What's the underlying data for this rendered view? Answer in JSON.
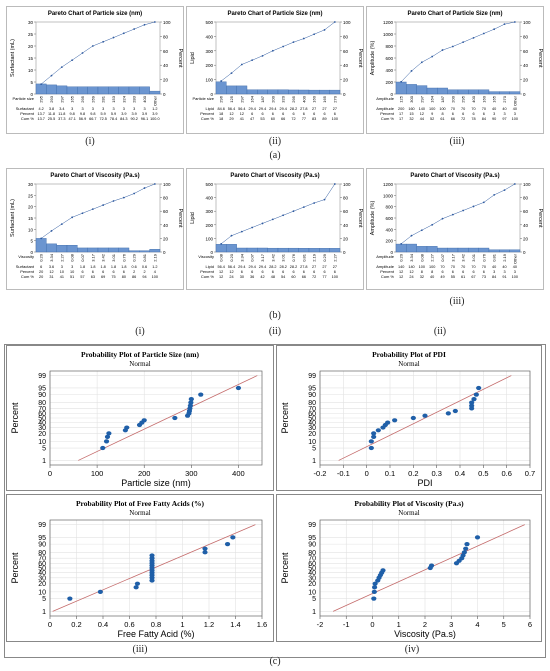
{
  "labels": {
    "row_a": "(a)",
    "row_b": "(b)",
    "row_c": "(c)",
    "a_i": "(i)",
    "a_ii": "(ii)",
    "a_iii": "(iii)",
    "b_i": "(i)",
    "b_ii": "(ii)",
    "b_iii": "(iii)",
    "b_extra": "(ii)",
    "c_i": "(i)",
    "c_ii": "(ii)",
    "c_iii": "(iii)",
    "c_iv": "(iv)"
  },
  "colors": {
    "bar": "#6b95d0",
    "bar_edge": "#3d6aa8",
    "line": "#2e5aa0",
    "point": "#1f5fa8",
    "fit": "#c46a6a",
    "grid": "#e2e2e2"
  },
  "chart_data": [
    {
      "id": "a_i",
      "type": "bar",
      "title": "Pareto Chart of Particle size (nm)",
      "ylabel": "Surfactant (mL)",
      "y2label": "Percent",
      "ylim": [
        0,
        30
      ],
      "yticks": [
        0,
        5,
        10,
        15,
        20,
        25,
        30
      ],
      "y2ticks": [
        0,
        20,
        40,
        60,
        80,
        100
      ],
      "row_names": [
        "Particle size",
        "Surfactant",
        "Percent",
        "Cum %"
      ],
      "categories": [
        "295",
        "293",
        "297",
        "165",
        "295",
        "269",
        "281",
        "153",
        "324",
        "283",
        "400",
        "Other"
      ],
      "values": [
        4.2,
        3.8,
        3.4,
        3.0,
        3.0,
        3.0,
        3.0,
        3.0,
        3.0,
        3.0,
        3.0,
        1.2
      ],
      "percent": [
        "13.7",
        "11.8",
        "11.8",
        "9.8",
        "9.8",
        "9.8",
        "5.9",
        "5.9",
        "3.9",
        "3.9",
        "3.9",
        "3.9"
      ],
      "cum": [
        "13.7",
        "25.5",
        "37.3",
        "47.1",
        "56.9",
        "66.7",
        "72.5",
        "78.4",
        "84.3",
        "90.2",
        "96.1",
        "100.0"
      ],
      "cum_values": [
        13.7,
        25.5,
        37.3,
        47.1,
        56.9,
        66.7,
        72.5,
        78.4,
        84.3,
        90.2,
        96.1,
        100
      ]
    },
    {
      "id": "a_ii",
      "type": "bar",
      "title": "Pareto Chart of Particle Size (nm)",
      "ylabel": "Lipid",
      "y2label": "Percent",
      "ylim": [
        0,
        500
      ],
      "yticks": [
        0,
        100,
        200,
        300,
        400,
        500
      ],
      "y2ticks": [
        0,
        20,
        40,
        60,
        80,
        100
      ],
      "row_names": [
        "Particle size",
        "Lipid",
        "Percent",
        "Cum %"
      ],
      "categories": [
        "296",
        "125",
        "297",
        "164",
        "187",
        "200",
        "320",
        "295",
        "400",
        "160",
        "165",
        "270"
      ],
      "values": [
        84.6,
        56.4,
        56.4,
        29.4,
        29.4,
        29.4,
        29.4,
        28.2,
        27.8,
        27.0,
        27.0,
        27.0
      ],
      "percent": [
        "18",
        "12",
        "12",
        "6",
        "6",
        "6",
        "6",
        "6",
        "6",
        "6",
        "6",
        "6"
      ],
      "cum": [
        "18",
        "29",
        "41",
        "47",
        "53",
        "60",
        "66",
        "72",
        "77",
        "83",
        "89",
        "100"
      ],
      "cum_values": [
        18,
        29,
        41,
        47,
        53,
        60,
        66,
        72,
        77,
        83,
        89,
        100
      ]
    },
    {
      "id": "a_iii",
      "type": "bar",
      "title": "Pareto Chart of Particle Size (nm)",
      "ylabel": "Amplitude (%)",
      "y2label": "Percent",
      "ylim": [
        0,
        1200
      ],
      "yticks": [
        0,
        200,
        400,
        600,
        800,
        1000,
        1200
      ],
      "y2ticks": [
        0,
        20,
        40,
        60,
        80,
        100
      ],
      "row_names": [
        "Amplitude",
        "Amplitude",
        "Percent",
        "Cum %"
      ],
      "categories": [
        "125",
        "300",
        "297",
        "164",
        "187",
        "200",
        "295",
        "400",
        "160",
        "165",
        "270",
        "Other"
      ],
      "values": [
        200,
        160,
        140,
        100,
        100,
        70,
        70,
        70,
        70,
        40,
        40,
        40
      ],
      "percent": [
        "17",
        "15",
        "12",
        "9",
        "8",
        "6",
        "6",
        "6",
        "6",
        "3",
        "3",
        "3"
      ],
      "cum": [
        "17",
        "32",
        "44",
        "52",
        "61",
        "66",
        "72",
        "78",
        "84",
        "90",
        "97",
        "100"
      ],
      "cum_values": [
        17,
        32,
        44,
        52,
        61,
        66,
        72,
        78,
        84,
        90,
        97,
        100
      ]
    },
    {
      "id": "b_i",
      "type": "bar",
      "title": "Pareto Chart of Viscosity (Pa.s)",
      "ylabel": "Surfactant (mL)",
      "y2label": "Percent",
      "ylim": [
        0,
        30
      ],
      "yticks": [
        0,
        5,
        10,
        15,
        20,
        25,
        30
      ],
      "y2ticks": [
        0,
        20,
        40,
        60,
        80,
        100
      ],
      "row_names": [
        "Viscosity",
        "Surfactant",
        "Percent",
        "Cum %"
      ],
      "categories": [
        "0.20",
        "3.34",
        "2.27",
        "0.08",
        "0.07",
        "3.17",
        "3.42",
        "3.01",
        "0.76",
        "0.29",
        "0.81",
        "2.19"
      ],
      "values": [
        6.0,
        3.6,
        3.0,
        3.0,
        1.8,
        1.8,
        1.8,
        1.8,
        1.8,
        0.6,
        0.6,
        1.2
      ],
      "percent": [
        "20",
        "12",
        "10",
        "10",
        "6",
        "6",
        "6",
        "6",
        "6",
        "2",
        "2",
        "4"
      ],
      "cum": [
        "20",
        "31",
        "41",
        "51",
        "57",
        "63",
        "69",
        "75",
        "80",
        "86",
        "94",
        "100"
      ],
      "cum_values": [
        20,
        31,
        41,
        51,
        57,
        63,
        69,
        75,
        80,
        86,
        94,
        100
      ]
    },
    {
      "id": "b_ii",
      "type": "bar",
      "title": "Pareto Chart of Viscosity (Pa.s)",
      "ylabel": "Lipid",
      "y2label": "Percent",
      "ylim": [
        0,
        500
      ],
      "yticks": [
        0,
        100,
        200,
        300,
        400,
        500
      ],
      "y2ticks": [
        0,
        20,
        40,
        60,
        80,
        100
      ],
      "row_names": [
        "Viscosity",
        "Lipid",
        "Percent",
        "Cum %"
      ],
      "categories": [
        "0.08",
        "0.20",
        "3.34",
        "0.07",
        "3.17",
        "3.42",
        "3.01",
        "0.76",
        "0.81",
        "2.19",
        "0.29",
        "2.27"
      ],
      "values": [
        56.4,
        56.4,
        29.4,
        29.4,
        29.4,
        28.2,
        28.2,
        28.2,
        27.8,
        27.0,
        27.0,
        27.0
      ],
      "percent": [
        "12",
        "12",
        "6",
        "6",
        "6",
        "6",
        "6",
        "6",
        "6",
        "6",
        "6",
        "6"
      ],
      "cum": [
        "12",
        "24",
        "30",
        "36",
        "42",
        "48",
        "54",
        "60",
        "66",
        "72",
        "77",
        "100"
      ],
      "cum_values": [
        12,
        24,
        30,
        36,
        42,
        48,
        54,
        60,
        66,
        72,
        77,
        100
      ]
    },
    {
      "id": "b_iii",
      "type": "bar",
      "title": "Pareto Chart of Viscosity (Pa.s)",
      "ylabel": "Amplitude (%)",
      "y2label": "Percent",
      "ylim": [
        0,
        1200
      ],
      "yticks": [
        0,
        200,
        400,
        600,
        800,
        1000,
        1200
      ],
      "y2ticks": [
        0,
        20,
        40,
        60,
        80,
        100
      ],
      "row_names": [
        "Amplitude",
        "Amplitude",
        "Percent",
        "Cum %"
      ],
      "categories": [
        "0.20",
        "3.34",
        "0.08",
        "2.27",
        "0.07",
        "3.17",
        "3.42",
        "3.01",
        "0.76",
        "0.81",
        "2.19",
        "Other"
      ],
      "values": [
        140,
        140,
        100,
        100,
        70,
        70,
        70,
        70,
        70,
        40,
        40,
        40
      ],
      "percent": [
        "12",
        "12",
        "8",
        "8",
        "6",
        "6",
        "6",
        "6",
        "6",
        "3",
        "3",
        "3"
      ],
      "cum": [
        "12",
        "24",
        "32",
        "40",
        "49",
        "55",
        "61",
        "67",
        "73",
        "84",
        "91",
        "100"
      ],
      "cum_values": [
        12,
        24,
        32,
        40,
        49,
        55,
        61,
        67,
        73,
        84,
        91,
        100
      ]
    },
    {
      "id": "c_i",
      "type": "scatter",
      "title": "Probability  Plot of Particle Size (nm)",
      "subtitle": "Normal",
      "xlabel": "Particle size (nm)",
      "ylabel": "Percent",
      "xlim": [
        0,
        450
      ],
      "xticks": [
        0,
        100,
        200,
        300,
        400
      ],
      "yticks": [
        1,
        5,
        10,
        20,
        30,
        40,
        50,
        60,
        70,
        80,
        90,
        95,
        99
      ],
      "x": [
        112,
        120,
        122,
        125,
        160,
        163,
        190,
        195,
        200,
        265,
        292,
        295,
        296,
        297,
        298,
        299,
        300,
        320,
        400
      ],
      "y": [
        5,
        10,
        15,
        20,
        25,
        30,
        35,
        40,
        45,
        50,
        55,
        60,
        65,
        70,
        75,
        80,
        85,
        90,
        95
      ],
      "fit": [
        [
          60,
          1
        ],
        [
          440,
          99
        ]
      ]
    },
    {
      "id": "c_ii",
      "type": "scatter",
      "title": "Probability  Plot of PDI",
      "subtitle": "Normal",
      "xlabel": "PDI",
      "ylabel": "Percent",
      "xlim": [
        -0.2,
        0.7
      ],
      "xticks": [
        -0.2,
        -0.1,
        0.0,
        0.1,
        0.2,
        0.3,
        0.4,
        0.5,
        0.6,
        0.7
      ],
      "yticks": [
        1,
        5,
        10,
        20,
        30,
        40,
        50,
        60,
        70,
        80,
        90,
        95,
        99
      ],
      "x": [
        0.02,
        0.02,
        0.03,
        0.03,
        0.05,
        0.07,
        0.08,
        0.09,
        0.12,
        0.2,
        0.25,
        0.35,
        0.38,
        0.45,
        0.45,
        0.45,
        0.46,
        0.47,
        0.48
      ],
      "y": [
        5,
        10,
        15,
        20,
        25,
        30,
        35,
        40,
        45,
        50,
        55,
        60,
        65,
        70,
        75,
        80,
        85,
        90,
        95
      ],
      "fit": [
        [
          -0.12,
          1
        ],
        [
          0.62,
          99
        ]
      ]
    },
    {
      "id": "c_iii",
      "type": "scatter",
      "title": "Probability  Plot of Free Fatty Acids (%)",
      "subtitle": "Normal",
      "xlabel": "Free Fatty Acid (%)",
      "ylabel": "Percent",
      "xlim": [
        0.0,
        1.6
      ],
      "xticks": [
        0.0,
        0.2,
        0.4,
        0.6,
        0.8,
        1.0,
        1.2,
        1.4,
        1.6
      ],
      "yticks": [
        1,
        5,
        10,
        20,
        30,
        40,
        50,
        60,
        70,
        80,
        90,
        95,
        99
      ],
      "x": [
        0.15,
        0.38,
        0.65,
        0.66,
        0.77,
        0.77,
        0.77,
        0.77,
        0.77,
        0.77,
        0.77,
        0.77,
        0.77,
        0.77,
        0.77,
        1.17,
        1.17,
        1.34,
        1.38
      ],
      "y": [
        5,
        10,
        15,
        20,
        25,
        30,
        35,
        40,
        45,
        50,
        55,
        60,
        65,
        70,
        75,
        80,
        85,
        90,
        95
      ],
      "fit": [
        [
          0.02,
          1
        ],
        [
          1.55,
          99
        ]
      ]
    },
    {
      "id": "c_iv",
      "type": "scatter",
      "title": "Probability  Plot of Viscosity (Pa.s)",
      "subtitle": "Normal",
      "xlabel": "Viscosity (Pa.s)",
      "ylabel": "Percent",
      "xlim": [
        -2,
        6
      ],
      "xticks": [
        -2,
        -1,
        0,
        1,
        2,
        3,
        4,
        5,
        6
      ],
      "yticks": [
        1,
        5,
        10,
        20,
        30,
        40,
        50,
        60,
        70,
        80,
        90,
        95,
        99
      ],
      "x": [
        0.05,
        0.07,
        0.08,
        0.1,
        0.2,
        0.25,
        0.3,
        0.35,
        0.4,
        2.2,
        2.25,
        3.2,
        3.3,
        3.4,
        3.45,
        3.5,
        3.55,
        3.6,
        4.0
      ],
      "y": [
        5,
        10,
        15,
        20,
        25,
        30,
        35,
        40,
        45,
        50,
        55,
        60,
        65,
        70,
        75,
        80,
        85,
        90,
        95
      ],
      "fit": [
        [
          -1.5,
          1
        ],
        [
          5.8,
          99
        ]
      ]
    }
  ]
}
